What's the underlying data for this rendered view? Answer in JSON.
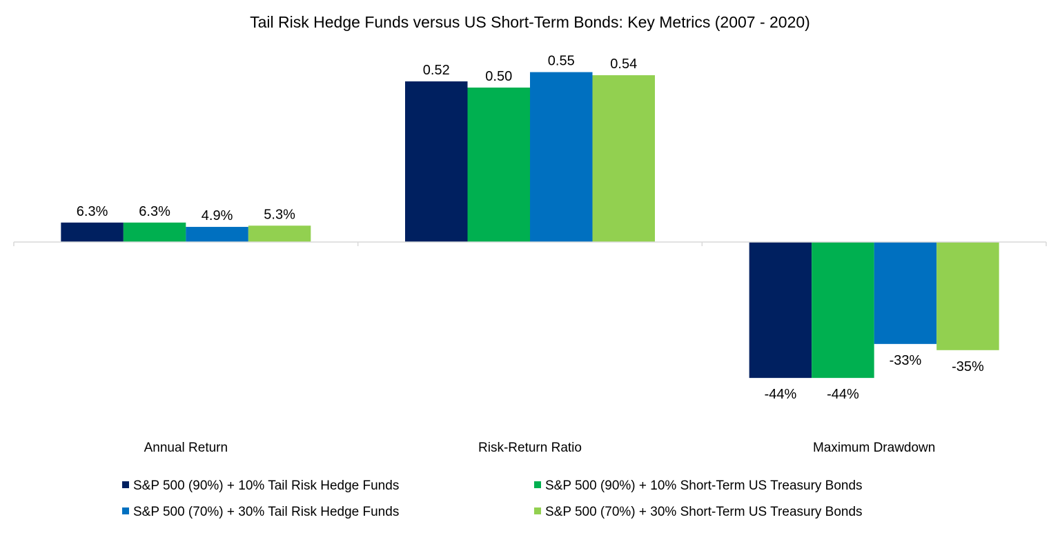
{
  "chart_data": {
    "type": "bar",
    "title": "Tail Risk Hedge Funds versus US Short-Term Bonds: Key Metrics (2007 - 2020)",
    "categories": [
      "Annual Return",
      "Risk-Return Ratio",
      "Maximum Drawdown"
    ],
    "series": [
      {
        "name": "S&P 500 (90%) + 10% Tail Risk Hedge Funds",
        "color": "#002060",
        "values": [
          0.063,
          0.52,
          -0.44
        ],
        "labels": [
          "6.3%",
          "0.52",
          "-44%"
        ]
      },
      {
        "name": "S&P 500 (90%) + 10% Short-Term US Treasury Bonds",
        "color": "#00B050",
        "values": [
          0.063,
          0.5,
          -0.44
        ],
        "labels": [
          "6.3%",
          "0.50",
          "-44%"
        ]
      },
      {
        "name": "S&P 500 (70%) + 30% Tail Risk Hedge Funds",
        "color": "#0070C0",
        "values": [
          0.049,
          0.55,
          -0.33
        ],
        "labels": [
          "4.9%",
          "0.55",
          "-33%"
        ]
      },
      {
        "name": "S&P 500 (70%) + 30% Short-Term US Treasury Bonds",
        "color": "#92D050",
        "values": [
          0.053,
          0.54,
          -0.35
        ],
        "labels": [
          "5.3%",
          "0.54",
          "-35%"
        ]
      }
    ],
    "xlabel": "",
    "ylabel": "",
    "grid": false,
    "legend_position": "bottom"
  }
}
